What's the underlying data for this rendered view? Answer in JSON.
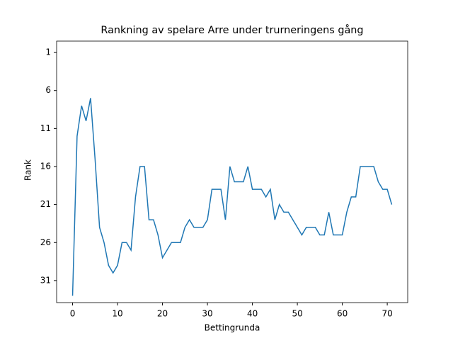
{
  "chart_data": {
    "type": "line",
    "title": "Rankning av spelare Arre under trurneringens gång",
    "x_label": "Bettingrunda",
    "y_label": "Rank",
    "x": [
      0,
      1,
      2,
      3,
      4,
      5,
      6,
      7,
      8,
      9,
      10,
      11,
      12,
      13,
      14,
      15,
      16,
      17,
      18,
      19,
      20,
      21,
      22,
      23,
      24,
      25,
      26,
      27,
      28,
      29,
      30,
      31,
      32,
      33,
      34,
      35,
      36,
      37,
      38,
      39,
      40,
      41,
      42,
      43,
      44,
      45,
      46,
      47,
      48,
      49,
      50,
      51,
      52,
      53,
      54,
      55,
      56,
      57,
      58,
      59,
      60,
      61,
      62,
      63,
      64,
      65,
      66,
      67,
      68,
      69,
      70,
      71
    ],
    "series": [
      {
        "color": "#1f77b4",
        "values": [
          33,
          12,
          8,
          10,
          7,
          15,
          24,
          26,
          29,
          30,
          29,
          26,
          26,
          27,
          20,
          16,
          16,
          23,
          23,
          25,
          28,
          27,
          26,
          26,
          26,
          24,
          23,
          24,
          24,
          24,
          23,
          19,
          19,
          19,
          23,
          16,
          18,
          18,
          18,
          16,
          19,
          19,
          19,
          20,
          19,
          23,
          21,
          22,
          22,
          23,
          24,
          25,
          24,
          24,
          24,
          25,
          25,
          22,
          25,
          25,
          25,
          22,
          20,
          20,
          16,
          16,
          16,
          16,
          18,
          19,
          19,
          21
        ]
      }
    ],
    "xlim": [
      -3.55,
      74.55
    ],
    "xticks": [
      0,
      10,
      20,
      30,
      40,
      50,
      60,
      70
    ],
    "ylim": [
      33.9,
      -0.5
    ],
    "yticks": [
      1,
      6,
      11,
      16,
      21,
      26,
      31
    ]
  }
}
